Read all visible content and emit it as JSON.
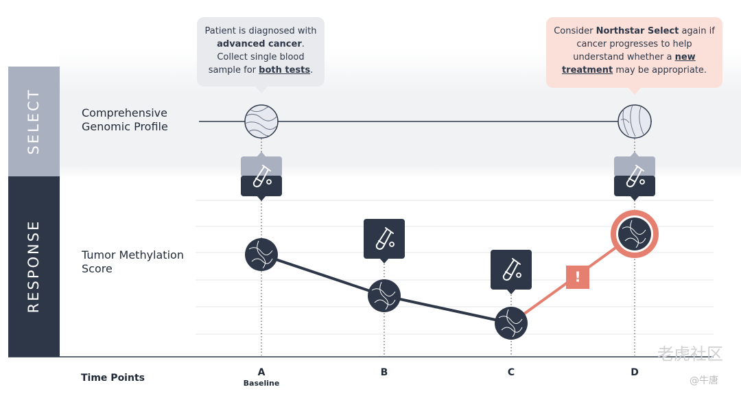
{
  "sections": [
    "SELECT",
    "RESPONSE"
  ],
  "rows": [
    "Comprehensive Genomic Profile",
    "Tumor Methylation Score",
    "Time Points"
  ],
  "time_points": [
    {
      "label": "A",
      "sublabel": "Baseline"
    },
    {
      "label": "B"
    },
    {
      "label": "C"
    },
    {
      "label": "D"
    }
  ],
  "callouts": [
    {
      "segments": [
        {
          "text": "Patient is diagnosed with "
        },
        {
          "text": "advanced cancer",
          "bold": true
        },
        {
          "text": ". Collect single blood sample for "
        },
        {
          "text": "both tests",
          "bold": true,
          "underline": true
        },
        {
          "text": "."
        }
      ]
    },
    {
      "segments": [
        {
          "text": "Consider "
        },
        {
          "text": "Northstar Select",
          "bold": true
        },
        {
          "text": " again if cancer progresses to help understand whether a "
        },
        {
          "text": "new treatment",
          "bold": true,
          "underline": true
        },
        {
          "text": " may be appropriate."
        }
      ]
    }
  ],
  "alert": "!",
  "watermark": [
    "老虎社区",
    "@牛唐"
  ]
}
